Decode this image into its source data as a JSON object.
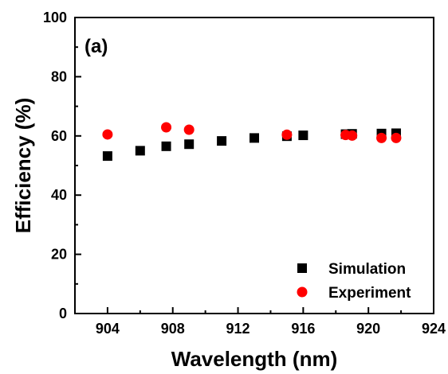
{
  "chart_data": {
    "type": "scatter",
    "panel_label": "(a)",
    "xlabel": "Wavelength (nm)",
    "ylabel": "Efficiency (%)",
    "xlim": [
      902,
      924
    ],
    "ylim": [
      0,
      100
    ],
    "xticks": [
      904,
      908,
      912,
      916,
      920,
      924
    ],
    "yticks": [
      0,
      20,
      40,
      60,
      80,
      100
    ],
    "grid": false,
    "legend_position": "bottom-right",
    "series": [
      {
        "name": "Simulation",
        "marker": "square",
        "color": "#000000",
        "points": [
          {
            "x": 904,
            "y": 53.2
          },
          {
            "x": 906,
            "y": 55.0
          },
          {
            "x": 907.6,
            "y": 56.5
          },
          {
            "x": 909,
            "y": 57.2
          },
          {
            "x": 911,
            "y": 58.3
          },
          {
            "x": 913,
            "y": 59.3
          },
          {
            "x": 915,
            "y": 59.9
          },
          {
            "x": 916,
            "y": 60.2
          },
          {
            "x": 918.6,
            "y": 60.6
          },
          {
            "x": 919,
            "y": 60.7
          },
          {
            "x": 920.8,
            "y": 60.8
          },
          {
            "x": 921.7,
            "y": 60.9
          }
        ]
      },
      {
        "name": "Experiment",
        "marker": "circle",
        "color": "#ff0000",
        "points": [
          {
            "x": 904,
            "y": 60.5
          },
          {
            "x": 907.6,
            "y": 62.9
          },
          {
            "x": 909,
            "y": 62.1
          },
          {
            "x": 915,
            "y": 60.4
          },
          {
            "x": 918.6,
            "y": 60.3
          },
          {
            "x": 919,
            "y": 60.1
          },
          {
            "x": 920.8,
            "y": 59.3
          },
          {
            "x": 921.7,
            "y": 59.3
          }
        ]
      }
    ]
  }
}
